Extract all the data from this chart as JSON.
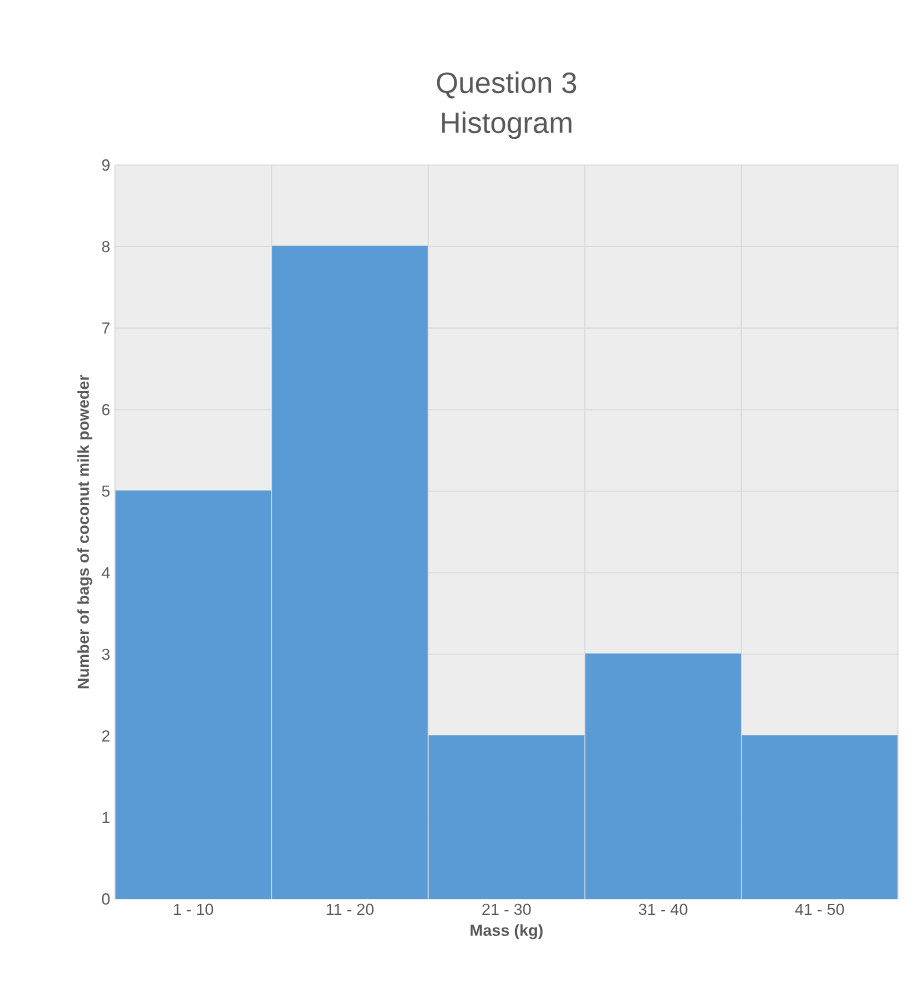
{
  "chart_data": {
    "type": "bar",
    "title": "Question 3",
    "subtitle": "Histogram",
    "xlabel": "Mass (kg)",
    "ylabel": "Number of bags of coconut milk poweder",
    "categories": [
      "1 - 10",
      "11 - 20",
      "21 - 30",
      "31 - 40",
      "41 - 50"
    ],
    "values": [
      5,
      8,
      2,
      3,
      2
    ],
    "color": "#5b9bd5",
    "ylim": [
      0,
      9
    ],
    "yticks": [
      0,
      1,
      2,
      3,
      4,
      5,
      6,
      7,
      8,
      9
    ],
    "grid": true
  }
}
